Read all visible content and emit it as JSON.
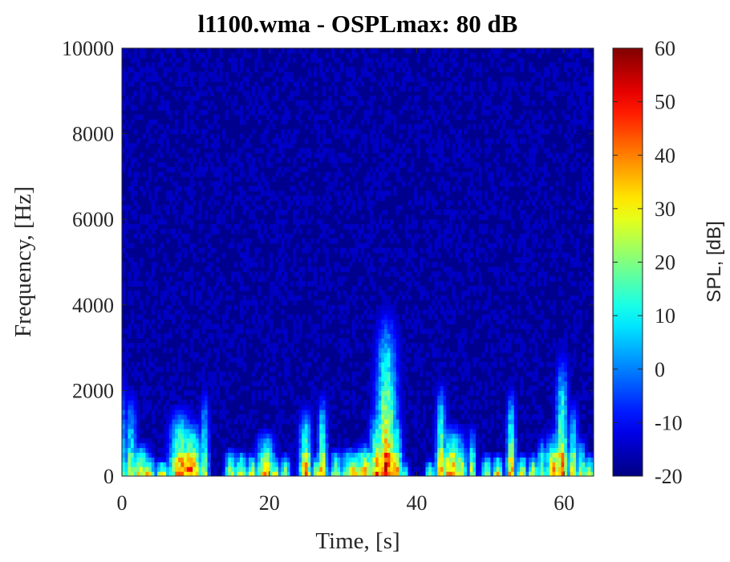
{
  "chart_data": {
    "type": "heatmap",
    "title": "l1100.wma - OSPLmax: 80 dB",
    "xlabel": "Time, [s]",
    "ylabel": "Frequency, [Hz]",
    "colorbar_label": "SPL, [dB]",
    "xlim": [
      0,
      64
    ],
    "ylim": [
      0,
      10000
    ],
    "clim": [
      -20,
      60
    ],
    "x_ticks": [
      0,
      20,
      40,
      60
    ],
    "y_ticks": [
      0,
      2000,
      4000,
      6000,
      8000,
      10000
    ],
    "colorbar_ticks": [
      60,
      50,
      40,
      30,
      20,
      10,
      0,
      -10,
      -20
    ],
    "colormap": "jet",
    "background_level_db": -18,
    "grid": false,
    "energy_bursts": [
      {
        "t": 0.3,
        "width_s": 0.4,
        "f_top_hz": 1800,
        "peak_db": 18
      },
      {
        "t": 1.2,
        "width_s": 0.8,
        "f_top_hz": 1500,
        "peak_db": 28
      },
      {
        "t": 2.5,
        "width_s": 1.2,
        "f_top_hz": 600,
        "peak_db": 40
      },
      {
        "t": 3.6,
        "width_s": 0.8,
        "f_top_hz": 400,
        "peak_db": 42
      },
      {
        "t": 5.5,
        "width_s": 1.0,
        "f_top_hz": 300,
        "peak_db": 35
      },
      {
        "t": 8.0,
        "width_s": 1.5,
        "f_top_hz": 1200,
        "peak_db": 50
      },
      {
        "t": 9.3,
        "width_s": 1.6,
        "f_top_hz": 1000,
        "peak_db": 52
      },
      {
        "t": 11.2,
        "width_s": 0.6,
        "f_top_hz": 1500,
        "peak_db": 30
      },
      {
        "t": 14.8,
        "width_s": 0.8,
        "f_top_hz": 500,
        "peak_db": 35
      },
      {
        "t": 16.2,
        "width_s": 0.8,
        "f_top_hz": 450,
        "peak_db": 36
      },
      {
        "t": 17.6,
        "width_s": 0.7,
        "f_top_hz": 400,
        "peak_db": 38
      },
      {
        "t": 19.5,
        "width_s": 1.2,
        "f_top_hz": 800,
        "peak_db": 44
      },
      {
        "t": 20.8,
        "width_s": 0.7,
        "f_top_hz": 350,
        "peak_db": 36
      },
      {
        "t": 22.2,
        "width_s": 0.6,
        "f_top_hz": 400,
        "peak_db": 35
      },
      {
        "t": 24.9,
        "width_s": 0.8,
        "f_top_hz": 1200,
        "peak_db": 48
      },
      {
        "t": 26.4,
        "width_s": 0.6,
        "f_top_hz": 400,
        "peak_db": 36
      },
      {
        "t": 27.2,
        "width_s": 0.6,
        "f_top_hz": 1400,
        "peak_db": 45
      },
      {
        "t": 29.0,
        "width_s": 0.8,
        "f_top_hz": 500,
        "peak_db": 30
      },
      {
        "t": 31.2,
        "width_s": 1.6,
        "f_top_hz": 500,
        "peak_db": 42
      },
      {
        "t": 33.0,
        "width_s": 1.4,
        "f_top_hz": 600,
        "peak_db": 44
      },
      {
        "t": 34.6,
        "width_s": 1.0,
        "f_top_hz": 1200,
        "peak_db": 50
      },
      {
        "t": 35.9,
        "width_s": 1.4,
        "f_top_hz": 2800,
        "peak_db": 55
      },
      {
        "t": 37.2,
        "width_s": 0.8,
        "f_top_hz": 1200,
        "peak_db": 44
      },
      {
        "t": 38.4,
        "width_s": 0.5,
        "f_top_hz": 300,
        "peak_db": 26
      },
      {
        "t": 41.8,
        "width_s": 0.6,
        "f_top_hz": 300,
        "peak_db": 30
      },
      {
        "t": 43.3,
        "width_s": 0.7,
        "f_top_hz": 1600,
        "peak_db": 45
      },
      {
        "t": 44.8,
        "width_s": 1.6,
        "f_top_hz": 900,
        "peak_db": 48
      },
      {
        "t": 46.0,
        "width_s": 0.8,
        "f_top_hz": 700,
        "peak_db": 42
      },
      {
        "t": 47.5,
        "width_s": 0.5,
        "f_top_hz": 900,
        "peak_db": 35
      },
      {
        "t": 49.5,
        "width_s": 0.7,
        "f_top_hz": 400,
        "peak_db": 36
      },
      {
        "t": 51.0,
        "width_s": 0.7,
        "f_top_hz": 400,
        "peak_db": 38
      },
      {
        "t": 52.8,
        "width_s": 0.6,
        "f_top_hz": 1500,
        "peak_db": 45
      },
      {
        "t": 54.3,
        "width_s": 0.7,
        "f_top_hz": 400,
        "peak_db": 38
      },
      {
        "t": 55.8,
        "width_s": 0.7,
        "f_top_hz": 400,
        "peak_db": 37
      },
      {
        "t": 57.0,
        "width_s": 0.6,
        "f_top_hz": 700,
        "peak_db": 34
      },
      {
        "t": 58.7,
        "width_s": 1.2,
        "f_top_hz": 800,
        "peak_db": 48
      },
      {
        "t": 59.7,
        "width_s": 0.8,
        "f_top_hz": 2100,
        "peak_db": 46
      },
      {
        "t": 61.2,
        "width_s": 0.7,
        "f_top_hz": 1300,
        "peak_db": 35
      },
      {
        "t": 62.3,
        "width_s": 0.6,
        "f_top_hz": 700,
        "peak_db": 34
      },
      {
        "t": 63.4,
        "width_s": 0.8,
        "f_top_hz": 400,
        "peak_db": 36
      }
    ]
  }
}
